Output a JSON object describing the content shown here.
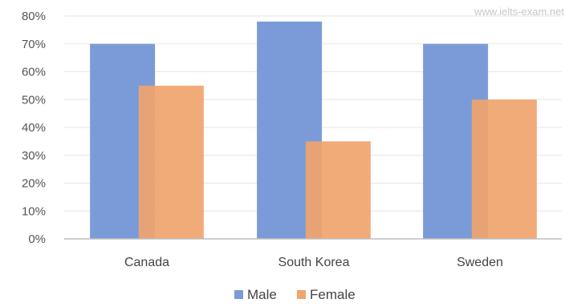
{
  "watermark": "www.ielts-exam.net",
  "chart_data": {
    "type": "bar",
    "categories": [
      "Canada",
      "South Korea",
      "Sweden"
    ],
    "series": [
      {
        "name": "Male",
        "values": [
          70,
          78,
          70
        ],
        "color": "#7b9bd8"
      },
      {
        "name": "Female",
        "values": [
          55,
          35,
          50
        ],
        "color": "#f0a46e"
      }
    ],
    "ylim": [
      0,
      80
    ],
    "yticks": [
      0,
      10,
      20,
      30,
      40,
      50,
      60,
      70,
      80
    ],
    "ytick_labels": [
      "0%",
      "10%",
      "20%",
      "30%",
      "40%",
      "50%",
      "60%",
      "70%",
      "80%"
    ],
    "grid": true,
    "legend_position": "bottom"
  }
}
